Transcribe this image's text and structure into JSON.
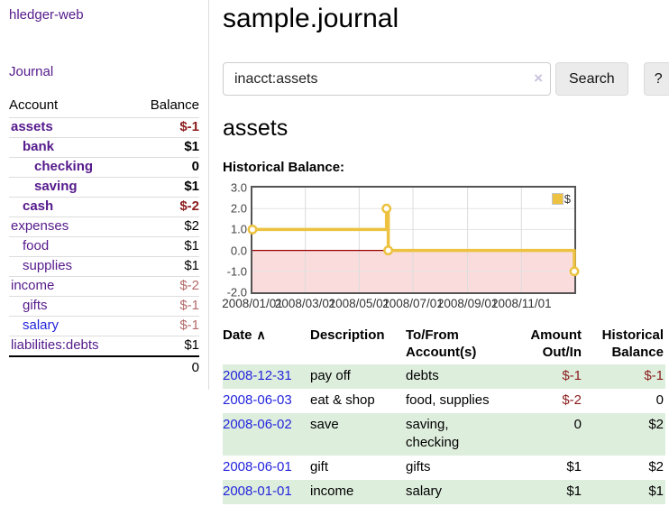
{
  "app": {
    "brand": "hledger-web"
  },
  "colors": {
    "link_purple": "#551a8b",
    "link_blue": "#2424dd",
    "negative_strong": "#8b1d1d",
    "negative_soft": "#b36a6a",
    "row_stripe_green": "#deeedd",
    "chart_line_gold": "#edc240",
    "chart_negative_bg": "#fbdcdc",
    "chart_zero_line": "#990000"
  },
  "sidebar": {
    "journal_link": "Journal",
    "table": {
      "account_header": "Account",
      "balance_header": "Balance",
      "rows": [
        {
          "label": "assets",
          "depth": 0,
          "bold": true,
          "balance": "$-1",
          "tone": "neg-strong"
        },
        {
          "label": "bank",
          "depth": 1,
          "bold": true,
          "balance": "$1",
          "tone": "normal"
        },
        {
          "label": "checking",
          "depth": 2,
          "bold": true,
          "balance": "0",
          "tone": "normal"
        },
        {
          "label": "saving",
          "depth": 2,
          "bold": true,
          "balance": "$1",
          "tone": "normal"
        },
        {
          "label": "cash",
          "depth": 1,
          "bold": true,
          "balance": "$-2",
          "tone": "neg-strong"
        },
        {
          "label": "expenses",
          "depth": 0,
          "bold": false,
          "balance": "$2",
          "tone": "normal"
        },
        {
          "label": "food",
          "depth": 1,
          "bold": false,
          "balance": "$1",
          "tone": "normal"
        },
        {
          "label": "supplies",
          "depth": 1,
          "bold": false,
          "balance": "$1",
          "tone": "normal"
        },
        {
          "label": "income",
          "depth": 0,
          "bold": false,
          "balance": "$-2",
          "tone": "neg-soft"
        },
        {
          "label": "gifts",
          "depth": 1,
          "bold": false,
          "balance": "$-1",
          "tone": "neg-soft"
        },
        {
          "label": "salary",
          "depth": 1,
          "bold": false,
          "balance": "$-1",
          "tone": "neg-soft",
          "link_color": "blue"
        },
        {
          "label": "liabilities:debts",
          "depth": 0,
          "bold": false,
          "balance": "$1",
          "tone": "normal"
        }
      ],
      "total": "0"
    }
  },
  "main": {
    "title": "sample.journal",
    "search": {
      "value": "inacct:assets",
      "clear_icon": "×",
      "button": "Search",
      "help_button": "?"
    },
    "account_heading": "assets"
  },
  "chart_data": {
    "type": "line",
    "title": "Historical Balance:",
    "step": true,
    "x_range": [
      "2008-01-01",
      "2008-12-31"
    ],
    "ylim": [
      -2,
      3
    ],
    "y_ticks": [
      "3.0",
      "2.0",
      "1.0",
      "0.0",
      "-1.0",
      "-2.0"
    ],
    "x_ticks": [
      "2008/01/01",
      "2008/03/01",
      "2008/05/01",
      "2008/07/01",
      "2008/09/01",
      "2008/11/01"
    ],
    "legend": {
      "label": "$",
      "position": "top-right"
    },
    "series": [
      {
        "name": "$",
        "points": [
          {
            "date": "2008-01-01",
            "value": 1
          },
          {
            "date": "2008-06-01",
            "value": 2
          },
          {
            "date": "2008-06-03",
            "value": 0
          },
          {
            "date": "2008-12-31",
            "value": -1
          }
        ]
      }
    ],
    "grid": true,
    "negative_region_shaded": true
  },
  "register": {
    "headers": [
      {
        "label": "Date",
        "align": "left",
        "sort_icon": "∧",
        "sortable": true
      },
      {
        "label": "Description",
        "align": "left"
      },
      {
        "label": "To/From Account(s)",
        "align": "left"
      },
      {
        "label": "Amount Out/In",
        "align": "right"
      },
      {
        "label": "Historical Balance",
        "align": "right"
      }
    ],
    "rows": [
      {
        "date": "2008-12-31",
        "description": "pay off",
        "accounts": "debts",
        "amount": "$-1",
        "balance": "$-1"
      },
      {
        "date": "2008-06-03",
        "description": "eat & shop",
        "accounts": "food, supplies",
        "amount": "$-2",
        "balance": "0"
      },
      {
        "date": "2008-06-02",
        "description": "save",
        "accounts": "saving, checking",
        "amount": "0",
        "balance": "$2"
      },
      {
        "date": "2008-06-01",
        "description": "gift",
        "accounts": "gifts",
        "amount": "$1",
        "balance": "$2"
      },
      {
        "date": "2008-01-01",
        "description": "income",
        "accounts": "salary",
        "amount": "$1",
        "balance": "$1"
      }
    ]
  }
}
